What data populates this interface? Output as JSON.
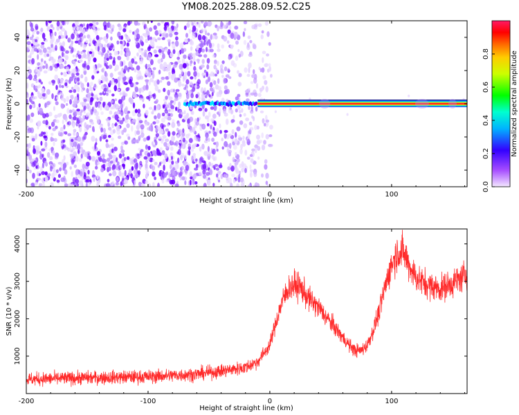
{
  "title": "YM08.2025.288.09.52.C25",
  "chart_data": [
    {
      "type": "heatmap",
      "xlabel": "Height of straight line (km)",
      "ylabel": "Frequency (Hz)",
      "xlim": [
        -200,
        162
      ],
      "ylim": [
        -50,
        50
      ],
      "xticks": [
        "-200",
        "-100",
        "0",
        "100"
      ],
      "yticks": [
        "-40",
        "-20",
        "0",
        "20",
        "40"
      ],
      "colorbar": {
        "label": "Normalized spectral amplitude",
        "range": [
          0,
          1
        ],
        "ticks": [
          "0.0",
          "0.2",
          "0.4",
          "0.6",
          "0.8"
        ],
        "colors": [
          "#f2e6ff",
          "#8a2be2",
          "#0000ff",
          "#00e5ff",
          "#00ff00",
          "#ffff00",
          "#ff8000",
          "#ff0000",
          "#ff1493"
        ]
      },
      "description_points": {
        "noise_region_x": [
          -200,
          -10
        ],
        "tone_start_x": -70,
        "tone_frequency_hz": 0,
        "strong_tone_from_x": -10,
        "strong_tone_to_x": 162
      },
      "grid": false
    },
    {
      "type": "line",
      "xlabel": "Height of straight line (km)",
      "ylabel": "SNR (10 * v/v)",
      "xlim": [
        -200,
        162
      ],
      "ylim": [
        0,
        4400
      ],
      "xticks": [
        "-200",
        "-100",
        "0",
        "100"
      ],
      "yticks": [
        "1000",
        "2000",
        "3000",
        "4000"
      ],
      "series": [
        {
          "color": "#ff2a2a",
          "x": [
            -200,
            -150,
            -100,
            -60,
            -40,
            -20,
            -10,
            0,
            5,
            10,
            15,
            20,
            25,
            30,
            40,
            50,
            60,
            65,
            70,
            75,
            80,
            85,
            90,
            95,
            100,
            105,
            110,
            115,
            120,
            130,
            140,
            150,
            162
          ],
          "y": [
            380,
            420,
            450,
            520,
            600,
            700,
            850,
            1300,
            1900,
            2450,
            2800,
            2900,
            2850,
            2600,
            2300,
            1900,
            1500,
            1300,
            1150,
            1150,
            1300,
            1700,
            2200,
            2900,
            3450,
            3800,
            3750,
            3400,
            3100,
            2900,
            2800,
            2950,
            3200
          ]
        }
      ],
      "grid": false
    }
  ]
}
